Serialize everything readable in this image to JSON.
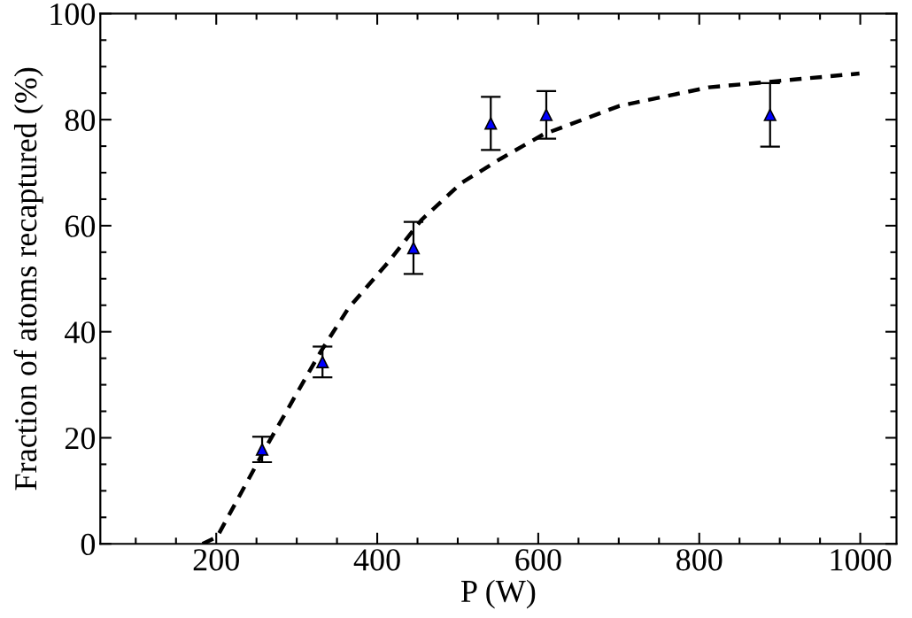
{
  "chart_data": {
    "type": "scatter",
    "xlabel": "P (W)",
    "ylabel": "Fraction of atoms recaptured (%)",
    "xlim": [
      56,
      1045
    ],
    "xticks": [
      200,
      400,
      600,
      800,
      1000
    ],
    "ylim": [
      0,
      100
    ],
    "yticks": [
      0,
      20,
      40,
      60,
      80,
      100
    ],
    "grid": false,
    "legend": false,
    "series": [
      {
        "color": "#0000ff",
        "marker": "triangle",
        "x": [
          257,
          332,
          445,
          541,
          610,
          888
        ],
        "values": [
          17.8,
          34.3,
          55.8,
          79.3,
          80.9,
          80.9
        ],
        "errors": [
          2.4,
          2.9,
          4.9,
          5,
          4.5,
          6
        ]
      },
      {
        "type": "line",
        "color": "#000000",
        "marker": "none",
        "line_style": "dashed",
        "x": [
          183,
          201,
          265,
          330,
          364,
          413,
          455,
          504,
          553,
          606,
          701,
          812,
          999
        ],
        "values": [
          0,
          1.3,
          19.1,
          36.3,
          44.4,
          53.0,
          61.1,
          68.0,
          72.6,
          77.2,
          82.6,
          86.1,
          88.7
        ]
      }
    ]
  }
}
